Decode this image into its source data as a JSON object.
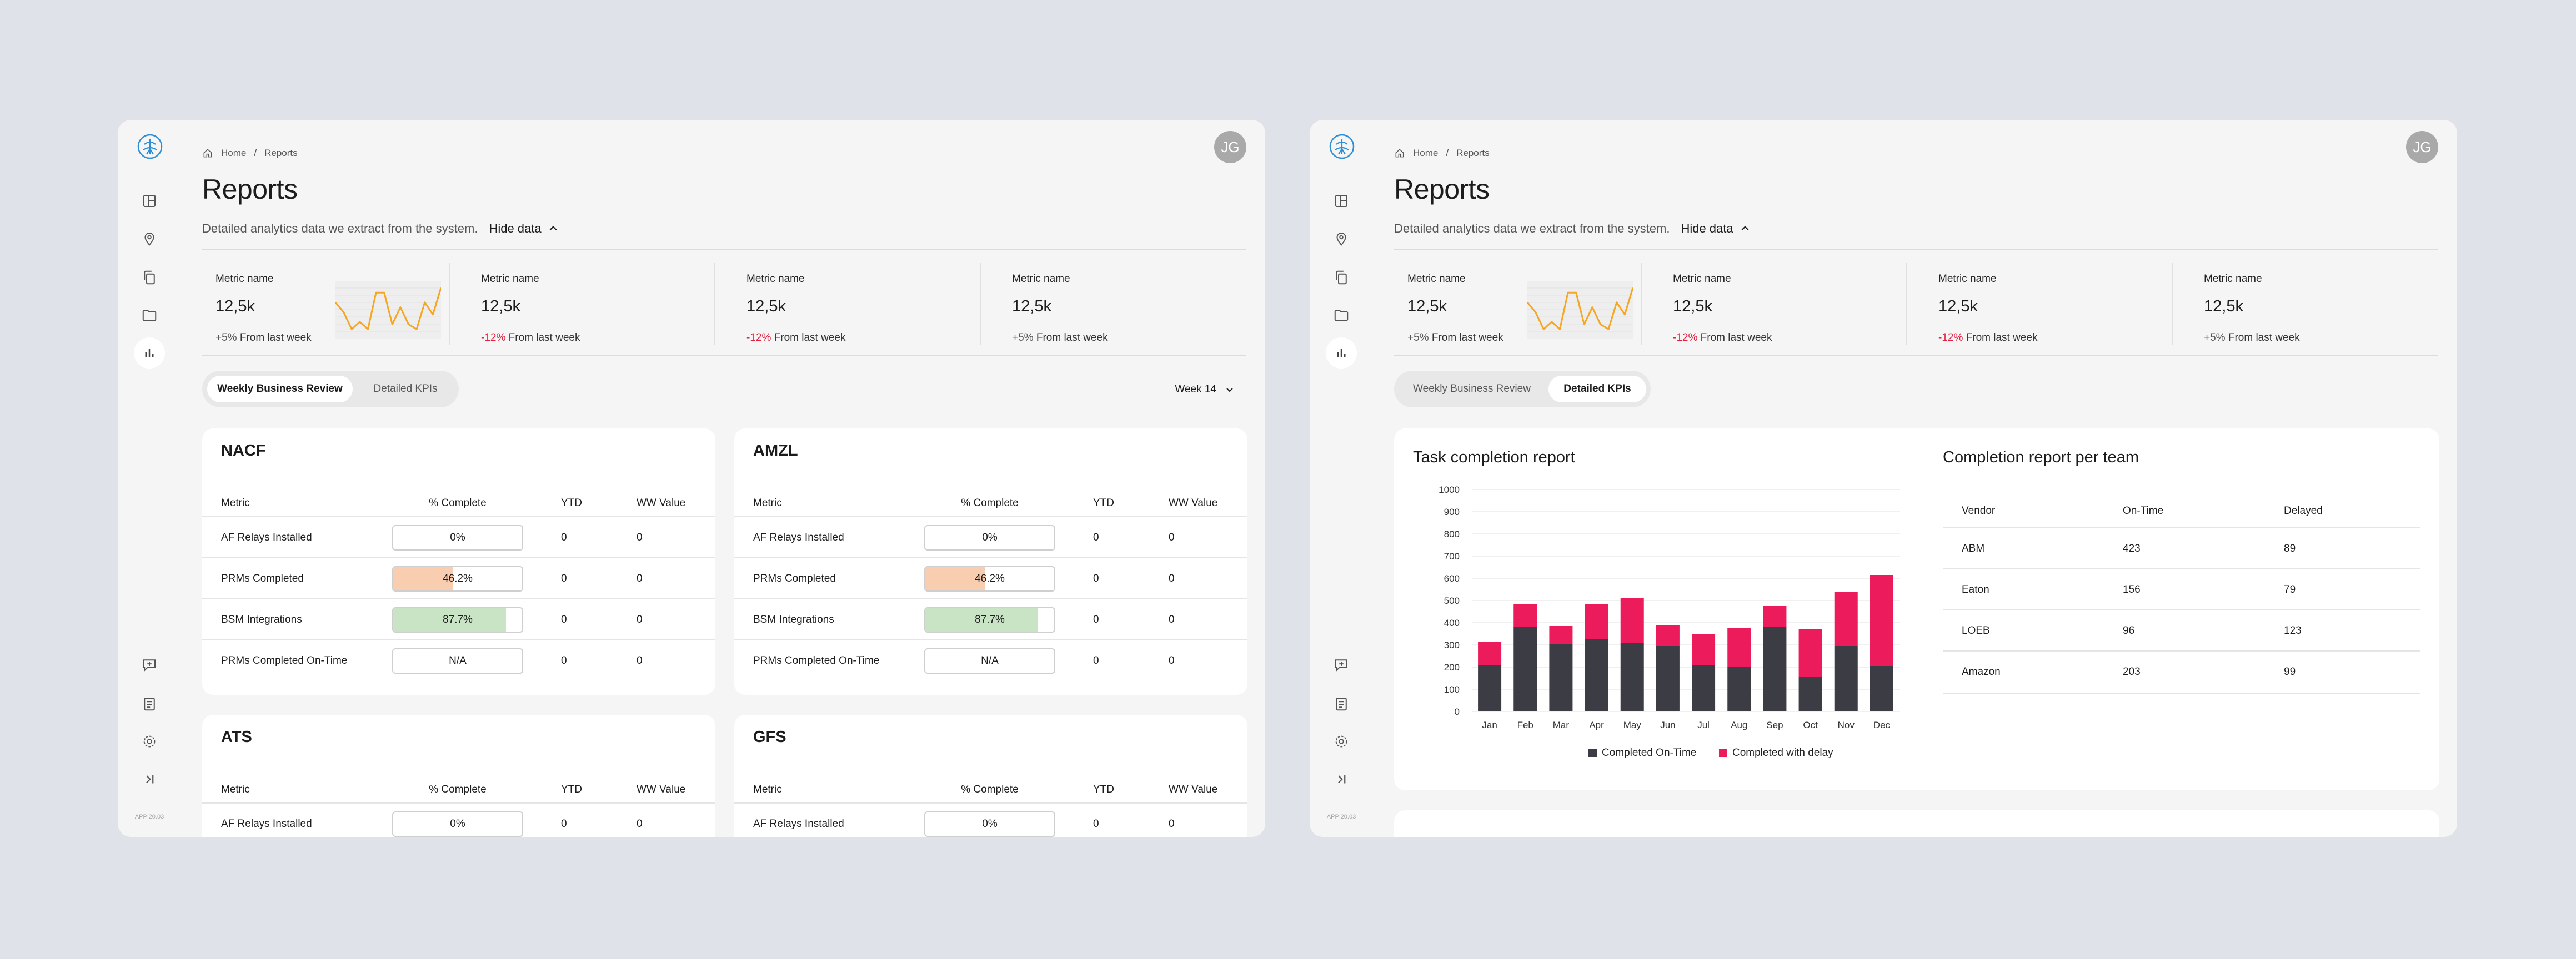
{
  "breadcrumb": {
    "home": "Home",
    "sep": "/",
    "current": "Reports"
  },
  "user": {
    "initials": "JG"
  },
  "page": {
    "title": "Reports",
    "subtitle": "Detailed analytics data we extract from the system.",
    "hide_label": "Hide data"
  },
  "metrics": [
    {
      "name": "Metric name",
      "value": "12,5k",
      "change": "+5%",
      "change_suffix": "From last week",
      "trend": "up",
      "sparkline": [
        0.35,
        0.55,
        0.9,
        0.75,
        0.9,
        0.15,
        0.15,
        0.8,
        0.45,
        0.8,
        0.9,
        0.35,
        0.6,
        0.05
      ]
    },
    {
      "name": "Metric name",
      "value": "12,5k",
      "change": "-12%",
      "change_suffix": "From last week",
      "trend": "down"
    },
    {
      "name": "Metric name",
      "value": "12,5k",
      "change": "-12%",
      "change_suffix": "From last week",
      "trend": "down"
    },
    {
      "name": "Metric name",
      "value": "12,5k",
      "change": "+5%",
      "change_suffix": "From last week",
      "trend": "up"
    }
  ],
  "tabs": [
    {
      "label": "Weekly Business Review"
    },
    {
      "label": "Detailed KPIs"
    }
  ],
  "week_selector": {
    "label": "Week 14"
  },
  "wbr_columns": [
    "Metric",
    "% Complete",
    "YTD",
    "WW Value"
  ],
  "wbr_cards": [
    {
      "title": "NACF",
      "rows": [
        {
          "metric": "AF Relays Installed",
          "pct": "0%",
          "fill": 0,
          "ytd": "0",
          "ww": "0"
        },
        {
          "metric": "PRMs Completed",
          "pct": "46.2%",
          "fill": 0.462,
          "ytd": "0",
          "ww": "0"
        },
        {
          "metric": "BSM Integrations",
          "pct": "87.7%",
          "fill": 0.877,
          "ytd": "0",
          "ww": "0"
        },
        {
          "metric": "PRMs Completed On-Time",
          "pct": "N/A",
          "fill": 0,
          "ytd": "0",
          "ww": "0"
        }
      ]
    },
    {
      "title": "AMZL",
      "rows": [
        {
          "metric": "AF Relays Installed",
          "pct": "0%",
          "fill": 0,
          "ytd": "0",
          "ww": "0"
        },
        {
          "metric": "PRMs Completed",
          "pct": "46.2%",
          "fill": 0.462,
          "ytd": "0",
          "ww": "0"
        },
        {
          "metric": "BSM Integrations",
          "pct": "87.7%",
          "fill": 0.877,
          "ytd": "0",
          "ww": "0"
        },
        {
          "metric": "PRMs Completed On-Time",
          "pct": "N/A",
          "fill": 0,
          "ytd": "0",
          "ww": "0"
        }
      ]
    },
    {
      "title": "ATS",
      "rows": [
        {
          "metric": "AF Relays Installed",
          "pct": "0%",
          "fill": 0,
          "ytd": "0",
          "ww": "0"
        }
      ]
    },
    {
      "title": "GFS",
      "rows": [
        {
          "metric": "AF Relays Installed",
          "pct": "0%",
          "fill": 0,
          "ytd": "0",
          "ww": "0"
        }
      ]
    }
  ],
  "colors": {
    "accent_orange": "#f5a623",
    "low_fill": "#f9cdb0",
    "high_fill": "#c9e4c5",
    "negative": "#e3203f",
    "bar_dark": "#3c3c44",
    "bar_pink": "#ec1c5c"
  },
  "task_report": {
    "title": "Task completion report",
    "chart_data": {
      "type": "bar",
      "stacked": true,
      "categories": [
        "Jan",
        "Feb",
        "Mar",
        "Apr",
        "May",
        "Jun",
        "Jul",
        "Aug",
        "Sep",
        "Oct",
        "Nov",
        "Dec"
      ],
      "series": [
        {
          "name": "Completed On-Time",
          "values": [
            210,
            380,
            305,
            325,
            310,
            295,
            210,
            200,
            380,
            155,
            295,
            205
          ]
        },
        {
          "name": "Completed with delay",
          "values": [
            105,
            105,
            80,
            160,
            200,
            95,
            140,
            175,
            95,
            215,
            245,
            410
          ]
        }
      ],
      "y_ticks": [
        "0",
        "100",
        "200",
        "300",
        "400",
        "500",
        "600",
        "700",
        "800",
        "900",
        "1000"
      ],
      "ylim": [
        0,
        1000
      ],
      "grid": true,
      "legend_position": "bottom"
    }
  },
  "team_report": {
    "title": "Completion report per team",
    "columns": [
      "Vendor",
      "On-Time",
      "Delayed"
    ],
    "rows": [
      {
        "vendor": "ABM",
        "ontime": "423",
        "delayed": "89"
      },
      {
        "vendor": "Eaton",
        "ontime": "156",
        "delayed": "79"
      },
      {
        "vendor": "LOEB",
        "ontime": "96",
        "delayed": "123"
      },
      {
        "vendor": "Amazon",
        "ontime": "203",
        "delayed": "99"
      }
    ]
  },
  "nav_icons": [
    "logo-icon",
    "layout-icon",
    "location-pin-icon",
    "copy-icon",
    "folder-icon",
    "bar-chart-icon",
    "add-comment-icon",
    "notes-icon",
    "settings-icon",
    "expand-sidebar-icon"
  ],
  "app_version": "APP 20.03"
}
